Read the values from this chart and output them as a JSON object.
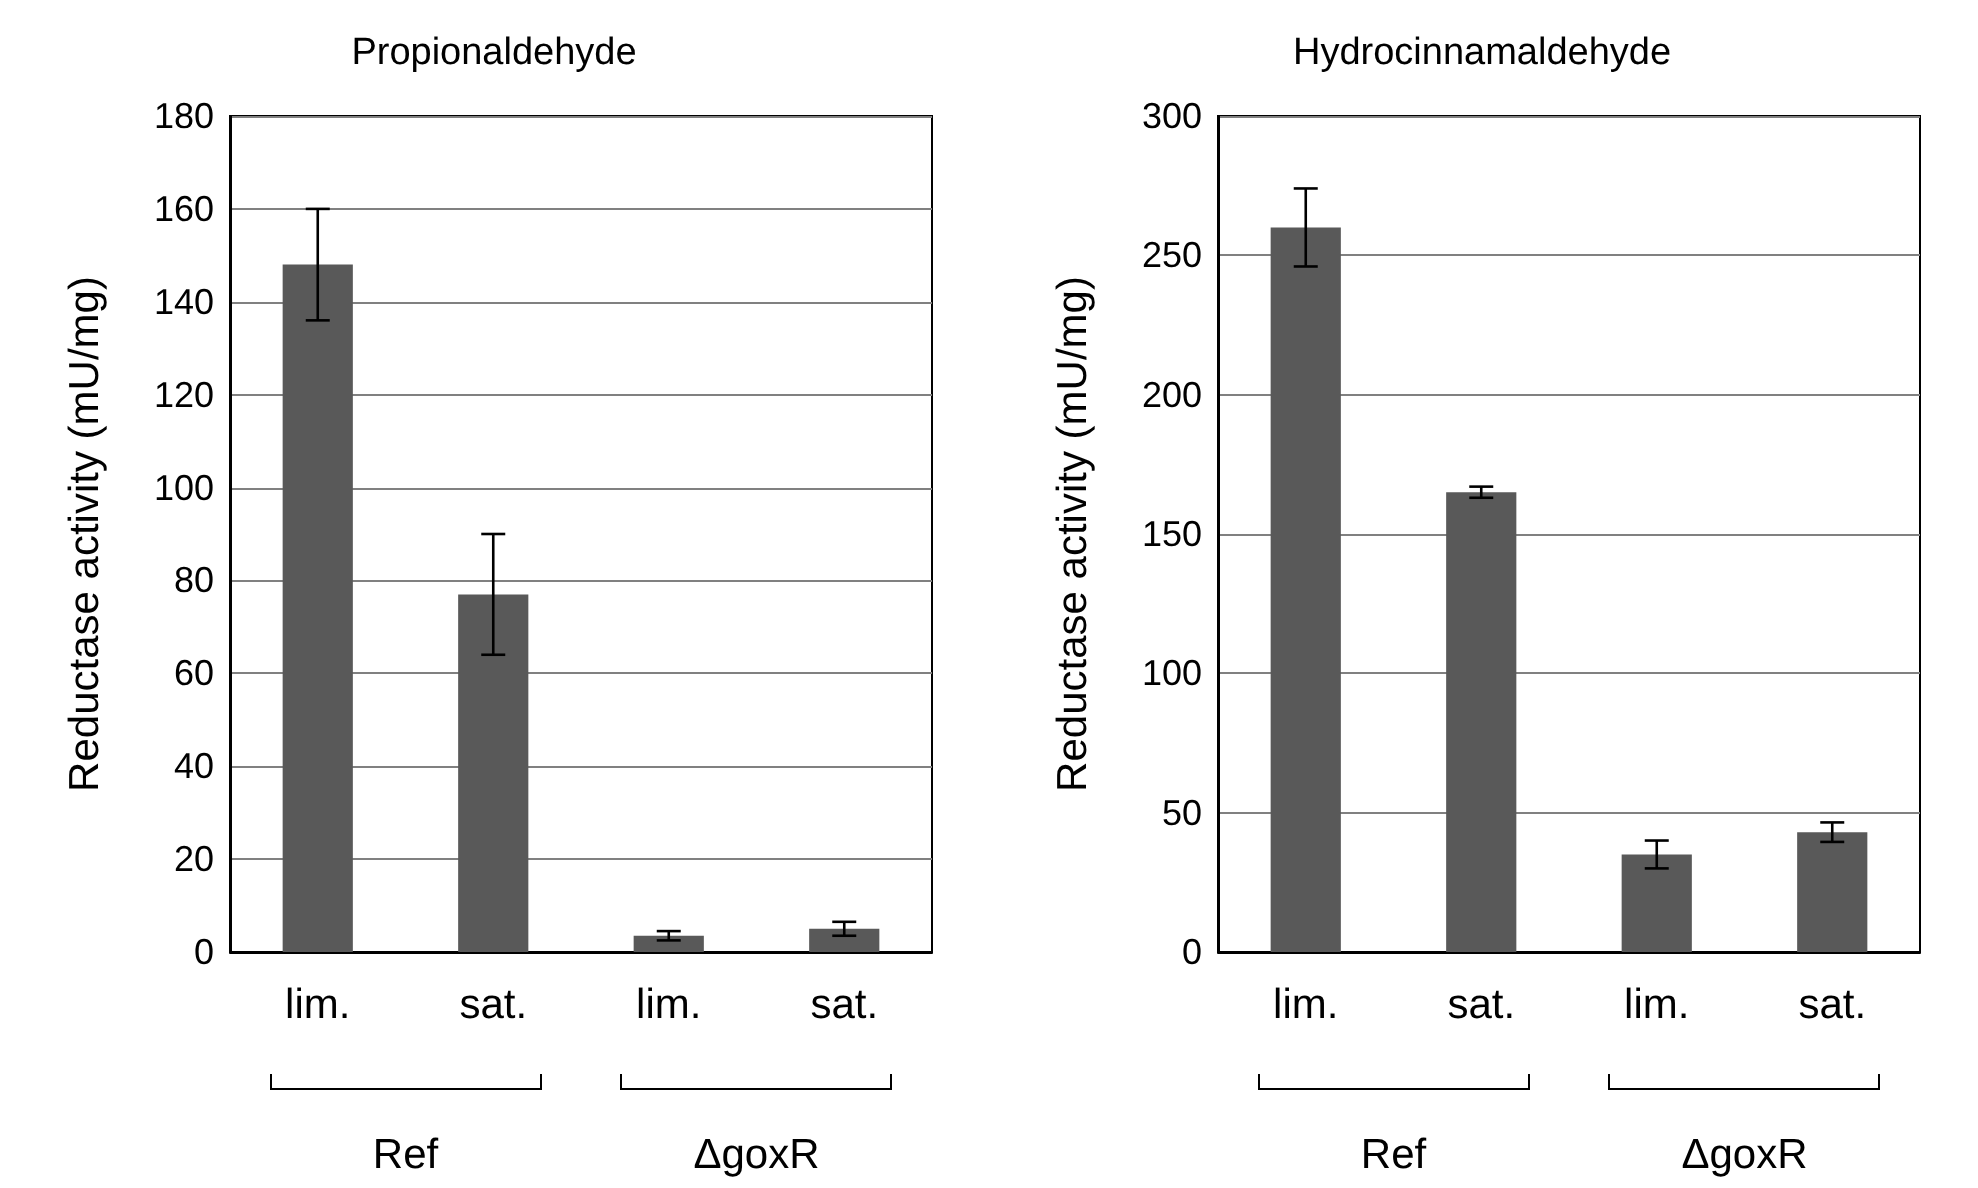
{
  "chart_data": [
    {
      "type": "bar",
      "title": "Propionaldehyde",
      "ylabel": "Reductase activity (mU/mg)",
      "categories": [
        "lim.",
        "sat.",
        "lim.",
        "sat."
      ],
      "values": [
        148,
        77,
        3.5,
        5
      ],
      "errors": [
        12,
        13,
        1,
        1.5
      ],
      "color": "#595959",
      "ylim": [
        0,
        180
      ],
      "yticks": [
        0,
        20,
        40,
        60,
        80,
        100,
        120,
        140,
        160,
        180
      ],
      "grid": "y",
      "annotations": [
        "Ref",
        "ΔgoxR"
      ]
    },
    {
      "type": "bar",
      "title": "Hydrocinnamaldehyde",
      "ylabel": "Reductase activity (mU/mg)",
      "categories": [
        "lim.",
        "sat.",
        "lim.",
        "sat."
      ],
      "values": [
        260,
        165,
        35,
        43
      ],
      "errors": [
        14,
        2,
        5,
        3.5
      ],
      "color": "#595959",
      "ylim": [
        0,
        300
      ],
      "yticks": [
        0,
        50,
        100,
        150,
        200,
        250,
        300
      ],
      "grid": "y",
      "annotations": [
        "Ref",
        "ΔgoxR"
      ]
    }
  ]
}
